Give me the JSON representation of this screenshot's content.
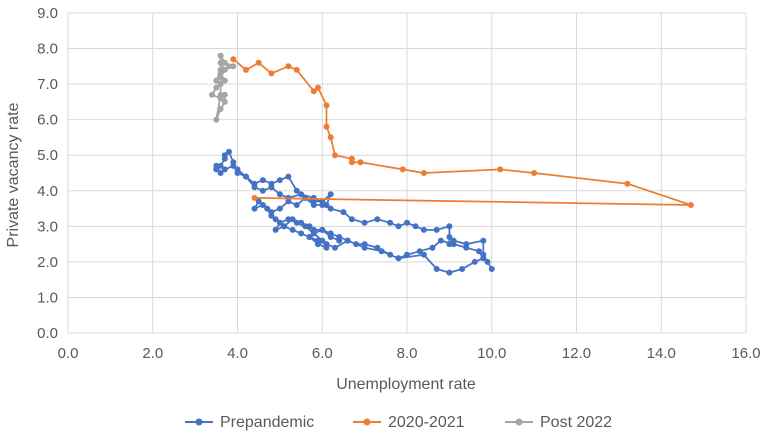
{
  "chart_data": {
    "type": "scatter",
    "title": "",
    "xlabel": "Unemployment rate",
    "ylabel": "Private vacancy rate",
    "xlim": [
      0,
      16
    ],
    "ylim": [
      0,
      9
    ],
    "x_ticks": [
      "0.0",
      "2.0",
      "4.0",
      "6.0",
      "8.0",
      "10.0",
      "12.0",
      "14.0",
      "16.0"
    ],
    "y_ticks": [
      "0.0",
      "1.0",
      "2.0",
      "3.0",
      "4.0",
      "5.0",
      "6.0",
      "7.0",
      "8.0",
      "9.0"
    ],
    "grid": "vertical and horizontal major gridlines",
    "legend_position": "bottom",
    "series": [
      {
        "name": "Prepandemic",
        "color": "#4472C4",
        "points": [
          [
            10.0,
            1.8
          ],
          [
            9.9,
            2.0
          ],
          [
            9.8,
            2.2
          ],
          [
            9.8,
            2.6
          ],
          [
            9.4,
            2.5
          ],
          [
            9.1,
            2.6
          ],
          [
            9.0,
            2.7
          ],
          [
            9.0,
            2.5
          ],
          [
            9.0,
            3.0
          ],
          [
            8.7,
            2.9
          ],
          [
            8.4,
            2.9
          ],
          [
            8.2,
            3.0
          ],
          [
            8.0,
            3.1
          ],
          [
            7.8,
            3.0
          ],
          [
            7.6,
            3.1
          ],
          [
            7.3,
            3.2
          ],
          [
            7.0,
            3.1
          ],
          [
            6.7,
            3.2
          ],
          [
            6.5,
            3.4
          ],
          [
            6.2,
            3.5
          ],
          [
            6.0,
            3.6
          ],
          [
            5.8,
            3.6
          ],
          [
            5.6,
            3.8
          ],
          [
            5.4,
            4.0
          ],
          [
            5.2,
            4.4
          ],
          [
            5.0,
            4.3
          ],
          [
            4.8,
            4.2
          ],
          [
            4.6,
            4.3
          ],
          [
            4.4,
            4.2
          ],
          [
            4.2,
            4.4
          ],
          [
            4.0,
            4.5
          ],
          [
            3.9,
            4.8
          ],
          [
            3.8,
            5.1
          ],
          [
            3.7,
            5.0
          ],
          [
            3.7,
            4.9
          ],
          [
            3.6,
            4.7
          ],
          [
            3.5,
            4.6
          ],
          [
            3.5,
            4.7
          ],
          [
            3.6,
            4.5
          ],
          [
            3.7,
            4.6
          ],
          [
            3.9,
            4.7
          ],
          [
            4.0,
            4.6
          ],
          [
            4.2,
            4.4
          ],
          [
            4.4,
            4.1
          ],
          [
            4.6,
            4.0
          ],
          [
            4.8,
            4.1
          ],
          [
            5.0,
            3.9
          ],
          [
            5.2,
            3.8
          ],
          [
            5.5,
            3.9
          ],
          [
            5.8,
            3.8
          ],
          [
            6.1,
            3.6
          ],
          [
            6.2,
            3.9
          ],
          [
            6.0,
            3.7
          ],
          [
            5.8,
            3.7
          ],
          [
            5.6,
            3.8
          ],
          [
            5.4,
            3.6
          ],
          [
            5.2,
            3.7
          ],
          [
            5.0,
            3.5
          ],
          [
            4.8,
            3.4
          ],
          [
            4.6,
            3.6
          ],
          [
            4.4,
            3.5
          ],
          [
            4.5,
            3.7
          ],
          [
            4.7,
            3.5
          ],
          [
            4.8,
            3.3
          ],
          [
            4.9,
            3.2
          ],
          [
            5.1,
            3.0
          ],
          [
            5.3,
            3.2
          ],
          [
            5.5,
            3.1
          ],
          [
            5.7,
            3.0
          ],
          [
            5.8,
            2.9
          ],
          [
            6.0,
            2.9
          ],
          [
            6.2,
            2.8
          ],
          [
            6.4,
            2.7
          ],
          [
            6.6,
            2.6
          ],
          [
            6.8,
            2.5
          ],
          [
            7.0,
            2.5
          ],
          [
            7.3,
            2.4
          ],
          [
            7.6,
            2.2
          ],
          [
            7.8,
            2.1
          ],
          [
            8.0,
            2.2
          ],
          [
            8.3,
            2.3
          ],
          [
            8.6,
            2.4
          ],
          [
            8.8,
            2.6
          ],
          [
            9.1,
            2.5
          ],
          [
            9.4,
            2.4
          ],
          [
            9.7,
            2.3
          ],
          [
            9.8,
            2.1
          ],
          [
            9.6,
            2.0
          ],
          [
            9.3,
            1.8
          ],
          [
            9.0,
            1.7
          ],
          [
            8.7,
            1.8
          ],
          [
            8.4,
            2.2
          ],
          [
            7.8,
            2.1
          ],
          [
            7.4,
            2.3
          ],
          [
            7.0,
            2.4
          ],
          [
            6.6,
            2.6
          ],
          [
            6.3,
            2.4
          ],
          [
            6.1,
            2.5
          ],
          [
            5.9,
            2.6
          ],
          [
            5.7,
            2.7
          ],
          [
            5.5,
            2.8
          ],
          [
            5.3,
            2.9
          ],
          [
            5.1,
            3.0
          ],
          [
            4.9,
            2.9
          ],
          [
            5.0,
            3.1
          ],
          [
            5.2,
            3.2
          ],
          [
            5.4,
            3.1
          ],
          [
            5.6,
            3.0
          ],
          [
            5.8,
            2.8
          ],
          [
            6.0,
            2.6
          ],
          [
            6.1,
            2.4
          ],
          [
            5.9,
            2.5
          ],
          [
            5.7,
            2.7
          ],
          [
            5.8,
            2.8
          ],
          [
            6.0,
            2.9
          ],
          [
            6.2,
            2.7
          ],
          [
            6.4,
            2.6
          ]
        ]
      },
      {
        "name": "2020-2021",
        "color": "#ED7D31",
        "points": [
          [
            4.4,
            3.8
          ],
          [
            14.7,
            3.6
          ],
          [
            13.2,
            4.2
          ],
          [
            11.0,
            4.5
          ],
          [
            10.2,
            4.6
          ],
          [
            8.4,
            4.5
          ],
          [
            7.9,
            4.6
          ],
          [
            6.9,
            4.8
          ],
          [
            6.7,
            4.8
          ],
          [
            6.7,
            4.9
          ],
          [
            6.3,
            5.0
          ],
          [
            6.2,
            5.5
          ],
          [
            6.1,
            5.8
          ],
          [
            6.1,
            6.4
          ],
          [
            5.9,
            6.9
          ],
          [
            5.8,
            6.8
          ],
          [
            5.4,
            7.4
          ],
          [
            5.2,
            7.5
          ],
          [
            4.8,
            7.3
          ],
          [
            4.5,
            7.6
          ],
          [
            4.2,
            7.4
          ],
          [
            3.9,
            7.7
          ]
        ]
      },
      {
        "name": "Post 2022",
        "color": "#A5A5A5",
        "points": [
          [
            3.9,
            7.5
          ],
          [
            3.8,
            7.5
          ],
          [
            3.7,
            7.6
          ],
          [
            3.6,
            7.8
          ],
          [
            3.6,
            7.4
          ],
          [
            3.5,
            7.1
          ],
          [
            3.6,
            7.0
          ],
          [
            3.5,
            6.9
          ],
          [
            3.4,
            6.7
          ],
          [
            3.6,
            6.6
          ],
          [
            3.7,
            6.7
          ],
          [
            3.7,
            6.5
          ],
          [
            3.6,
            6.3
          ],
          [
            3.5,
            6.0
          ],
          [
            3.6,
            6.7
          ],
          [
            3.6,
            7.3
          ],
          [
            3.7,
            7.1
          ],
          [
            3.6,
            7.2
          ],
          [
            3.7,
            7.4
          ],
          [
            3.6,
            7.6
          ]
        ]
      }
    ]
  }
}
